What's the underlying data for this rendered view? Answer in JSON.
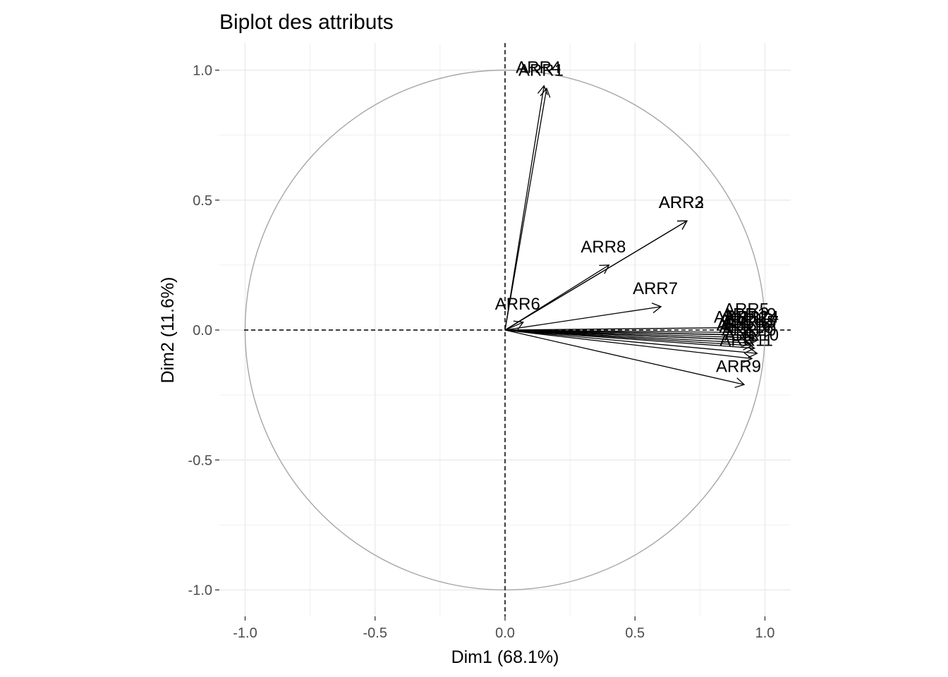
{
  "chart_data": {
    "type": "scatter",
    "subtype": "pca-variable-biplot",
    "title": "Biplot des attributs",
    "xlabel": "Dim1 (68.1%)",
    "ylabel": "Dim2 (11.6%)",
    "xlim": [
      -1.1,
      1.1
    ],
    "ylim": [
      -1.1,
      1.1
    ],
    "xticks": [
      -1.0,
      -0.5,
      0.0,
      0.5,
      1.0
    ],
    "yticks": [
      -1.0,
      -0.5,
      0.0,
      0.5,
      1.0
    ],
    "xtick_labels": [
      "-1.0",
      "-0.5",
      "0.0",
      "0.5",
      "1.0"
    ],
    "ytick_labels": [
      "-1.0",
      "-0.5",
      "0.0",
      "0.5",
      "1.0"
    ],
    "grid": true,
    "unit_circle": true,
    "reference_lines": "dashed x=0 and y=0",
    "colors": {
      "circle": "#a6a6a6",
      "grid": "#ebebeb",
      "arrow": "#000000",
      "tick": "#4d4d4d"
    },
    "variables": [
      {
        "label": "ARR1",
        "x": 0.16,
        "y": 0.93
      },
      {
        "label": "ARR4",
        "x": 0.15,
        "y": 0.94
      },
      {
        "label": "ARR2",
        "x": 0.7,
        "y": 0.42
      },
      {
        "label": "ARR3",
        "x": 0.7,
        "y": 0.42
      },
      {
        "label": "ARR8",
        "x": 0.4,
        "y": 0.25
      },
      {
        "label": "ARR7",
        "x": 0.6,
        "y": 0.09
      },
      {
        "label": "ARR6",
        "x": 0.07,
        "y": 0.03
      },
      {
        "label": "ARR5",
        "x": 0.95,
        "y": 0.01
      },
      {
        "label": "ARR19",
        "x": 0.96,
        "y": -0.01
      },
      {
        "label": "ARR12",
        "x": 0.93,
        "y": -0.02
      },
      {
        "label": "ARR13",
        "x": 0.95,
        "y": -0.03
      },
      {
        "label": "ARR14",
        "x": 0.97,
        "y": -0.02
      },
      {
        "label": "ARR15",
        "x": 0.96,
        "y": -0.04
      },
      {
        "label": "ARR16",
        "x": 0.94,
        "y": -0.05
      },
      {
        "label": "ARR17",
        "x": 0.97,
        "y": -0.04
      },
      {
        "label": "ARR18",
        "x": 0.95,
        "y": -0.06
      },
      {
        "label": "ARR20",
        "x": 0.96,
        "y": -0.07
      },
      {
        "label": "ARR10",
        "x": 0.97,
        "y": -0.09
      },
      {
        "label": "ARR11",
        "x": 0.95,
        "y": -0.11
      },
      {
        "label": "ARR9",
        "x": 0.92,
        "y": -0.21
      }
    ]
  }
}
